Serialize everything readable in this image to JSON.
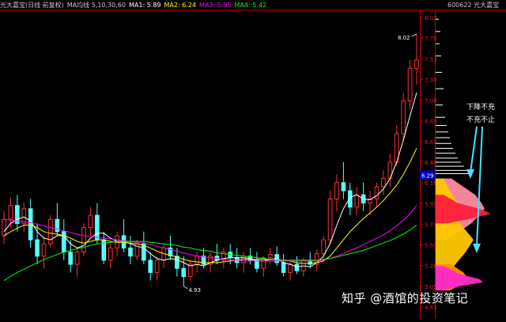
{
  "header": {
    "stock": "光大嘉宝(日线 前复权)",
    "ma_label": "MA均线 5,10,30,60",
    "ma1": "MA1: 5.89",
    "ma2": "MA2: 6.24",
    "ma3": "MA3: 5.95",
    "ma4": "MA4: 5.42"
  },
  "right_panel": {
    "title": "600622 光大嘉宝",
    "annotation_line1": "下降不充",
    "annotation_line2": "不充不止",
    "current_price": "6.29"
  },
  "watermark": "知乎 @酒馆的投资笔记",
  "colors": {
    "background": "#000000",
    "up": "#ff3030",
    "down": "#54ffff",
    "ma1": "#ffffff",
    "ma2": "#ffff00",
    "ma3": "#ff00ff",
    "ma4": "#00ff00",
    "axis": "#c80000",
    "chip_pink": "#ff8ca0",
    "chip_yellow": "#ffc800",
    "chip_red": "#ff1e3c",
    "chip_orange": "#ff8c00",
    "chip_magenta": "#ff28c8"
  },
  "chart_data": {
    "type": "candlestick",
    "ylim": [
      4.6,
      8.3
    ],
    "price_ticks": [
      "8.03",
      "7.75",
      "7.53",
      "7.30",
      "7.08",
      "6.85",
      "6.63",
      "6.40",
      "6.18",
      "5.95",
      "5.73",
      "5.50",
      "5.28",
      "5.05",
      "4.83"
    ],
    "annotations": {
      "low_label": "4.93",
      "high_label": "8.02"
    },
    "candles": [
      [
        5.55,
        5.85,
        5.45,
        5.75
      ],
      [
        5.75,
        6.02,
        5.65,
        5.92
      ],
      [
        5.92,
        6.05,
        5.6,
        5.7
      ],
      [
        5.7,
        5.95,
        5.6,
        5.88
      ],
      [
        5.88,
        6.0,
        5.4,
        5.5
      ],
      [
        5.5,
        5.7,
        5.2,
        5.3
      ],
      [
        5.3,
        5.55,
        5.15,
        5.45
      ],
      [
        5.45,
        5.8,
        5.4,
        5.75
      ],
      [
        5.75,
        5.95,
        5.55,
        5.6
      ],
      [
        5.6,
        5.75,
        5.25,
        5.35
      ],
      [
        5.35,
        5.5,
        5.1,
        5.2
      ],
      [
        5.2,
        5.4,
        5.05,
        5.35
      ],
      [
        5.35,
        5.7,
        5.3,
        5.65
      ],
      [
        5.65,
        5.9,
        5.55,
        5.8
      ],
      [
        5.8,
        5.95,
        5.45,
        5.5
      ],
      [
        5.5,
        5.6,
        5.2,
        5.25
      ],
      [
        5.25,
        5.45,
        5.15,
        5.4
      ],
      [
        5.4,
        5.6,
        5.3,
        5.55
      ],
      [
        5.55,
        5.75,
        5.35,
        5.4
      ],
      [
        5.4,
        5.55,
        5.2,
        5.3
      ],
      [
        5.3,
        5.5,
        5.25,
        5.45
      ],
      [
        5.45,
        5.6,
        5.2,
        5.25
      ],
      [
        5.25,
        5.35,
        5.0,
        5.1
      ],
      [
        5.1,
        5.3,
        5.0,
        5.25
      ],
      [
        5.25,
        5.45,
        5.15,
        5.4
      ],
      [
        5.4,
        5.55,
        5.25,
        5.3
      ],
      [
        5.3,
        5.4,
        5.05,
        5.15
      ],
      [
        5.15,
        5.3,
        4.93,
        5.05
      ],
      [
        5.05,
        5.25,
        5.0,
        5.2
      ],
      [
        5.2,
        5.35,
        5.1,
        5.3
      ],
      [
        5.3,
        5.4,
        5.15,
        5.2
      ],
      [
        5.2,
        5.35,
        5.1,
        5.3
      ],
      [
        5.3,
        5.45,
        5.2,
        5.25
      ],
      [
        5.25,
        5.4,
        5.15,
        5.35
      ],
      [
        5.35,
        5.45,
        5.2,
        5.28
      ],
      [
        5.28,
        5.4,
        5.15,
        5.22
      ],
      [
        5.22,
        5.35,
        5.1,
        5.3
      ],
      [
        5.3,
        5.4,
        5.2,
        5.25
      ],
      [
        5.25,
        5.35,
        5.1,
        5.15
      ],
      [
        5.15,
        5.3,
        5.05,
        5.28
      ],
      [
        5.28,
        5.4,
        5.2,
        5.32
      ],
      [
        5.32,
        5.42,
        5.18,
        5.22
      ],
      [
        5.22,
        5.33,
        5.05,
        5.1
      ],
      [
        5.1,
        5.25,
        5.0,
        5.2
      ],
      [
        5.2,
        5.3,
        5.08,
        5.12
      ],
      [
        5.12,
        5.28,
        5.05,
        5.25
      ],
      [
        5.25,
        5.35,
        5.15,
        5.2
      ],
      [
        5.2,
        5.38,
        5.12,
        5.33
      ],
      [
        5.33,
        5.55,
        5.25,
        5.5
      ],
      [
        5.5,
        6.1,
        5.45,
        6.0
      ],
      [
        6.0,
        6.3,
        5.85,
        6.2
      ],
      [
        6.2,
        6.45,
        6.0,
        6.1
      ],
      [
        6.1,
        6.2,
        5.8,
        5.9
      ],
      [
        5.9,
        6.15,
        5.8,
        6.05
      ],
      [
        6.05,
        6.2,
        5.85,
        5.95
      ],
      [
        5.95,
        6.1,
        5.8,
        6.0
      ],
      [
        6.0,
        6.2,
        5.9,
        6.15
      ],
      [
        6.15,
        6.35,
        6.05,
        6.25
      ],
      [
        6.25,
        6.55,
        6.15,
        6.45
      ],
      [
        6.45,
        6.9,
        6.4,
        6.8
      ],
      [
        6.8,
        7.3,
        6.7,
        7.2
      ],
      [
        7.2,
        7.7,
        7.1,
        7.6
      ],
      [
        7.6,
        8.02,
        7.4,
        7.7
      ]
    ],
    "moving_averages": [
      {
        "name": "MA1",
        "values": [
          5.6,
          5.7,
          5.75,
          5.78,
          5.73,
          5.6,
          5.52,
          5.5,
          5.55,
          5.55,
          5.45,
          5.4,
          5.43,
          5.52,
          5.58,
          5.58,
          5.52,
          5.48,
          5.48,
          5.45,
          5.42,
          5.4,
          5.33,
          5.27,
          5.25,
          5.27,
          5.26,
          5.22,
          5.18,
          5.2,
          5.18,
          5.22,
          5.25,
          5.27,
          5.28,
          5.28,
          5.28,
          5.27,
          5.24,
          5.24,
          5.26,
          5.27,
          5.22,
          5.2,
          5.17,
          5.18,
          5.17,
          5.22,
          5.3,
          5.45,
          5.68,
          5.88,
          6.02,
          6.05,
          6.0,
          5.99,
          6.04,
          6.12,
          6.25,
          6.45,
          6.72,
          7.02,
          7.3
        ]
      },
      {
        "name": "MA2",
        "values": [
          5.55,
          5.6,
          5.64,
          5.68,
          5.68,
          5.65,
          5.6,
          5.58,
          5.57,
          5.55,
          5.52,
          5.48,
          5.46,
          5.48,
          5.5,
          5.5,
          5.48,
          5.47,
          5.47,
          5.46,
          5.45,
          5.43,
          5.4,
          5.36,
          5.33,
          5.31,
          5.29,
          5.26,
          5.24,
          5.23,
          5.22,
          5.22,
          5.22,
          5.23,
          5.24,
          5.25,
          5.26,
          5.26,
          5.26,
          5.26,
          5.26,
          5.26,
          5.25,
          5.24,
          5.22,
          5.21,
          5.21,
          5.22,
          5.24,
          5.3,
          5.4,
          5.5,
          5.6,
          5.68,
          5.76,
          5.83,
          5.9,
          5.98,
          6.07,
          6.17,
          6.3,
          6.45,
          6.62
        ]
      },
      {
        "name": "MA3",
        "values": [
          5.75,
          5.74,
          5.73,
          5.72,
          5.71,
          5.69,
          5.67,
          5.65,
          5.63,
          5.61,
          5.59,
          5.57,
          5.55,
          5.54,
          5.53,
          5.52,
          5.51,
          5.5,
          5.49,
          5.48,
          5.47,
          5.46,
          5.44,
          5.42,
          5.4,
          5.38,
          5.36,
          5.34,
          5.32,
          5.3,
          5.29,
          5.28,
          5.27,
          5.26,
          5.25,
          5.25,
          5.24,
          5.24,
          5.24,
          5.24,
          5.24,
          5.24,
          5.24,
          5.24,
          5.24,
          5.24,
          5.24,
          5.24,
          5.25,
          5.27,
          5.3,
          5.33,
          5.37,
          5.4,
          5.44,
          5.48,
          5.52,
          5.56,
          5.61,
          5.67,
          5.74,
          5.82,
          5.92
        ]
      },
      {
        "name": "MA4",
        "values": [
          5.0,
          5.05,
          5.1,
          5.14,
          5.18,
          5.22,
          5.26,
          5.29,
          5.32,
          5.35,
          5.37,
          5.39,
          5.41,
          5.43,
          5.45,
          5.46,
          5.47,
          5.48,
          5.48,
          5.48,
          5.48,
          5.48,
          5.47,
          5.46,
          5.45,
          5.44,
          5.43,
          5.41,
          5.4,
          5.38,
          5.37,
          5.36,
          5.34,
          5.33,
          5.32,
          5.31,
          5.3,
          5.29,
          5.28,
          5.27,
          5.26,
          5.26,
          5.25,
          5.25,
          5.25,
          5.25,
          5.25,
          5.25,
          5.26,
          5.27,
          5.29,
          5.31,
          5.33,
          5.35,
          5.37,
          5.4,
          5.43,
          5.46,
          5.49,
          5.53,
          5.57,
          5.62,
          5.68
        ]
      }
    ],
    "chip_profile": {
      "upper_bars": [
        [
          8.2,
          4
        ],
        [
          8.05,
          6
        ],
        [
          7.9,
          5
        ],
        [
          7.75,
          7
        ],
        [
          7.55,
          8
        ],
        [
          7.35,
          10
        ],
        [
          7.15,
          9
        ],
        [
          7.0,
          12
        ],
        [
          6.9,
          14
        ],
        [
          6.82,
          16
        ],
        [
          6.75,
          18
        ],
        [
          6.68,
          20
        ],
        [
          6.62,
          22
        ],
        [
          6.56,
          25
        ],
        [
          6.5,
          28
        ],
        [
          6.45,
          32
        ],
        [
          6.4,
          36
        ],
        [
          6.35,
          40
        ],
        [
          6.31,
          44
        ]
      ],
      "layers": [
        {
          "name": "pink",
          "color": "#ff8ca0",
          "points": [
            [
              6.25,
              20
            ],
            [
              6.15,
              35
            ],
            [
              6.05,
              50
            ],
            [
              5.95,
              58
            ],
            [
              5.88,
              62
            ],
            [
              5.8,
              55
            ],
            [
              5.7,
              45
            ],
            [
              5.6,
              30
            ],
            [
              5.5,
              15
            ]
          ]
        },
        {
          "name": "yellow",
          "color": "#ffc800",
          "points": [
            [
              6.25,
              10
            ],
            [
              6.1,
              18
            ],
            [
              5.95,
              28
            ],
            [
              5.8,
              22
            ],
            [
              5.65,
              35
            ],
            [
              5.5,
              48
            ],
            [
              5.35,
              38
            ],
            [
              5.2,
              25
            ],
            [
              5.1,
              18
            ],
            [
              5.0,
              10
            ],
            [
              4.9,
              6
            ]
          ]
        },
        {
          "name": "red",
          "color": "#ff1e3c",
          "points": [
            [
              6.05,
              10
            ],
            [
              5.95,
              28
            ],
            [
              5.88,
              55
            ],
            [
              5.82,
              70
            ],
            [
              5.76,
              45
            ],
            [
              5.7,
              15
            ]
          ]
        },
        {
          "name": "orange",
          "color": "#ff8c00",
          "points": [
            [
              5.2,
              20
            ],
            [
              5.1,
              35
            ],
            [
              5.02,
              42
            ],
            [
              4.95,
              32
            ],
            [
              4.88,
              18
            ]
          ]
        },
        {
          "name": "magenta",
          "color": "#ff28c8",
          "points": [
            [
              5.18,
              10
            ],
            [
              5.08,
              30
            ],
            [
              5.02,
              55
            ],
            [
              4.98,
              60
            ],
            [
              4.93,
              30
            ],
            [
              4.88,
              10
            ]
          ]
        }
      ]
    }
  }
}
